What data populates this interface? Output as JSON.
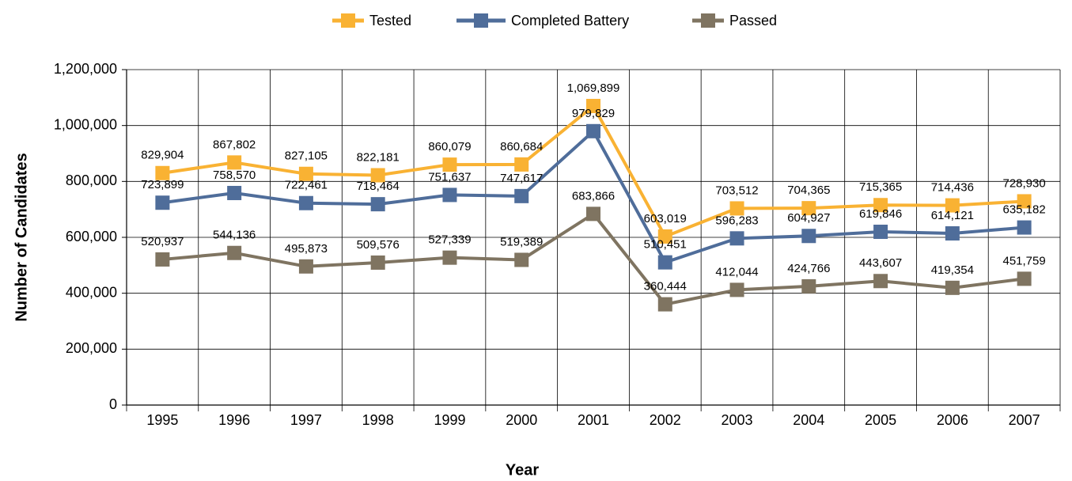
{
  "chart_data": {
    "type": "line",
    "x_label": "Year",
    "y_label": "Number of Candidates",
    "categories": [
      "1995",
      "1996",
      "1997",
      "1998",
      "1999",
      "2000",
      "2001",
      "2002",
      "2003",
      "2004",
      "2005",
      "2006",
      "2007"
    ],
    "series": [
      {
        "name": "Tested",
        "color": "#f9b233",
        "values": [
          829904,
          867802,
          827105,
          822181,
          860079,
          860684,
          1069899,
          603019,
          703512,
          704365,
          715365,
          714436,
          728930
        ],
        "value_labels": [
          "829,904",
          "867,802",
          "827,105",
          "822,181",
          "860,079",
          "860,684",
          "1,069,899",
          "603,019",
          "703,512",
          "704,365",
          "715,365",
          "714,436",
          "728,930"
        ]
      },
      {
        "name": "Completed Battery",
        "color": "#4f6d9a",
        "values": [
          723899,
          758570,
          722461,
          718464,
          751637,
          747617,
          979829,
          510451,
          596283,
          604927,
          619846,
          614121,
          635182
        ],
        "value_labels": [
          "723,899",
          "758,570",
          "722,461",
          "718,464",
          "751,637",
          "747,617",
          "979,829",
          "510,451",
          "596,283",
          "604,927",
          "619,846",
          "614,121",
          "635,182"
        ]
      },
      {
        "name": "Passed",
        "color": "#7f7461",
        "values": [
          520937,
          544136,
          495873,
          509576,
          527339,
          519389,
          683866,
          360444,
          412044,
          424766,
          443607,
          419354,
          451759
        ],
        "value_labels": [
          "520,937",
          "544,136",
          "495,873",
          "509,576",
          "527,339",
          "519,389",
          "683,866",
          "360,444",
          "412,044",
          "424,766",
          "443,607",
          "419,354",
          "451,759"
        ]
      }
    ],
    "ylim": [
      0,
      1200000
    ],
    "yticks": [
      0,
      {
        "value": 200000,
        "label": "200,000"
      },
      {
        "value": 400000,
        "label": "400,000"
      },
      {
        "value": 600000,
        "label": "600,000"
      },
      {
        "value": 800000,
        "label": "800,000"
      },
      {
        "value": 1000000,
        "label": "1,000,000"
      },
      {
        "value": 1200000,
        "label": "1,200,000"
      }
    ],
    "grid": true,
    "legend": "top"
  }
}
